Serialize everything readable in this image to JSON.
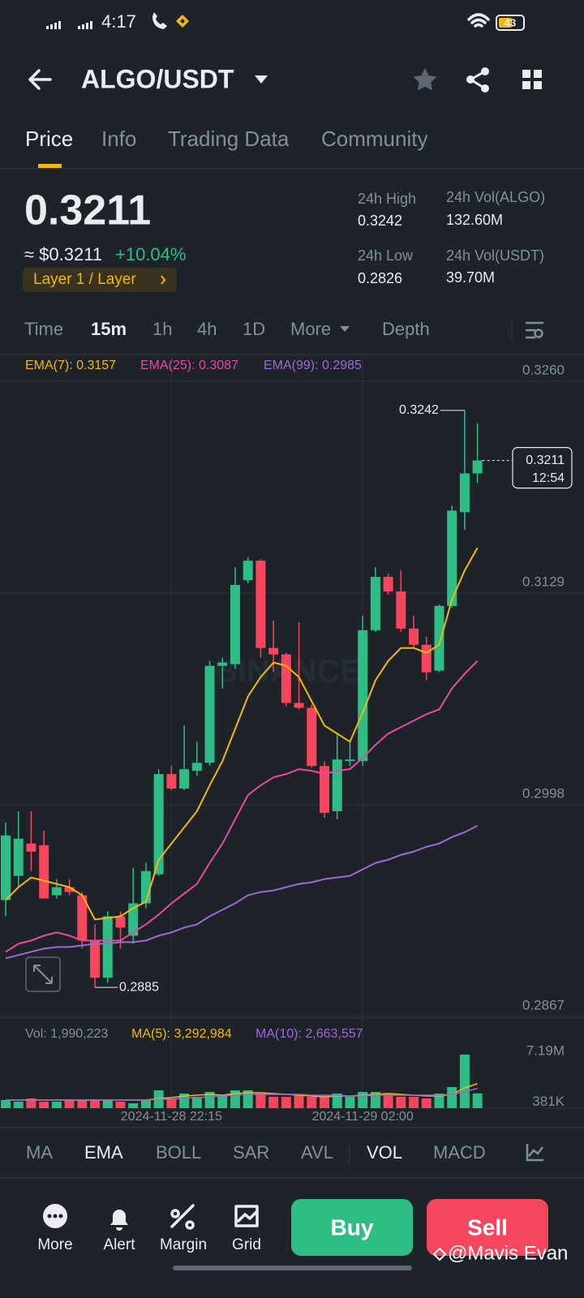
{
  "status_bar": {
    "time": "4:17",
    "battery": "43"
  },
  "header": {
    "pair": "ALGO/USDT"
  },
  "tabs": [
    "Price",
    "Info",
    "Trading Data",
    "Community"
  ],
  "price": {
    "last": "0.3211",
    "usd": "≈ $0.3211",
    "change": "+10.04%",
    "tag": "Layer 1 / Layer"
  },
  "stats": [
    {
      "label": "24h High",
      "value": "0.3242"
    },
    {
      "label": "24h Low",
      "value": "0.2826"
    },
    {
      "label": "24h Vol(ALGO)",
      "value": "132.60M"
    },
    {
      "label": "24h Vol(USDT)",
      "value": "39.70M"
    }
  ],
  "intervals": [
    "Time",
    "15m",
    "1h",
    "4h",
    "1D",
    "More",
    "Depth"
  ],
  "indicator_tabs": [
    "MA",
    "EMA",
    "BOLL",
    "SAR",
    "AVL",
    "VOL",
    "MACD"
  ],
  "actions": [
    "More",
    "Alert",
    "Margin",
    "Grid"
  ],
  "buy": "Buy",
  "sell": "Sell",
  "watermark": "@Mavis Evan",
  "logo": "BINANCE",
  "chart_data": [
    {
      "type": "candlestick",
      "up_color": "#2ebd85",
      "down_color": "#f6465d",
      "categories": [
        null,
        null,
        null,
        null,
        null,
        null,
        null,
        null,
        null,
        null,
        null,
        null,
        null,
        "2024-11-28 22:15",
        null,
        null,
        null,
        null,
        null,
        null,
        null,
        null,
        null,
        null,
        null,
        null,
        null,
        null,
        "2024-11-29 02:00",
        null,
        null,
        null,
        null,
        null,
        null,
        null,
        null,
        null
      ],
      "open": [
        0.2939,
        0.2954,
        0.2974,
        0.2973,
        0.2942,
        0.2947,
        0.2942,
        0.2914,
        0.2891,
        0.2929,
        0.2917,
        0.2937,
        0.2955,
        0.3017,
        0.3008,
        0.3019,
        0.3024,
        0.3084,
        0.3085,
        0.3137,
        0.3149,
        0.3095,
        0.3091,
        0.3061,
        0.3058,
        0.3022,
        0.2994,
        0.3025,
        0.3025,
        0.3106,
        0.3139,
        0.313,
        0.3107,
        0.3097,
        0.3081,
        0.3121,
        0.3179,
        0.3203
      ],
      "high": [
        0.2987,
        0.2994,
        0.2994,
        0.2982,
        0.2952,
        0.2952,
        0.2944,
        0.2924,
        0.2932,
        0.2932,
        0.2959,
        0.2962,
        0.302,
        0.3022,
        0.3047,
        0.3037,
        0.3087,
        0.3089,
        0.3145,
        0.3151,
        0.315,
        0.3112,
        0.3092,
        0.3111,
        0.306,
        0.3025,
        0.3042,
        0.3037,
        0.3115,
        0.3145,
        0.3141,
        0.3143,
        0.3115,
        0.3102,
        0.3122,
        0.3183,
        0.3242,
        0.3234
      ],
      "low": [
        0.2929,
        0.2947,
        0.2957,
        0.294,
        0.294,
        0.2942,
        0.2909,
        0.2885,
        0.2888,
        0.2909,
        0.2912,
        0.2934,
        0.2954,
        0.3007,
        0.3007,
        0.3016,
        0.3022,
        0.307,
        0.3082,
        0.3135,
        0.3089,
        0.308,
        0.3059,
        0.3057,
        0.3021,
        0.299,
        0.2989,
        0.3022,
        0.3022,
        0.3105,
        0.3128,
        0.3105,
        0.3095,
        0.3075,
        0.308,
        0.312,
        0.3168,
        0.3197
      ],
      "close": [
        0.2979,
        0.2977,
        0.2969,
        0.294,
        0.2947,
        0.2944,
        0.2914,
        0.2891,
        0.2929,
        0.2922,
        0.2937,
        0.2957,
        0.3017,
        0.3008,
        0.302,
        0.3024,
        0.3084,
        0.3086,
        0.3134,
        0.3149,
        0.3095,
        0.3091,
        0.3061,
        0.3058,
        0.3022,
        0.2993,
        0.3026,
        0.3026,
        0.3106,
        0.3139,
        0.313,
        0.3107,
        0.3097,
        0.308,
        0.3121,
        0.318,
        0.3203,
        0.3211
      ],
      "series": [
        {
          "name": "EMA(7): 0.3157",
          "color": "#f0b90b",
          "values": [
            0.2939,
            0.2947,
            0.2953,
            0.2951,
            0.2949,
            0.2947,
            0.2942,
            0.2927,
            0.2928,
            0.2929,
            0.2934,
            0.2938,
            0.2964,
            0.2974,
            0.2984,
            0.2994,
            0.301,
            0.3025,
            0.3045,
            0.3065,
            0.3077,
            0.3086,
            0.3084,
            0.3077,
            0.3062,
            0.3047,
            0.3042,
            0.3037,
            0.3055,
            0.3075,
            0.3087,
            0.3095,
            0.3095,
            0.3092,
            0.3097,
            0.3125,
            0.3143,
            0.3157
          ]
        },
        {
          "name": "EMA(25): 0.3087",
          "color": "#e84aa3",
          "values": [
            0.2907,
            0.2912,
            0.2914,
            0.2917,
            0.2919,
            0.2917,
            0.2914,
            0.2914,
            0.2914,
            0.2914,
            0.2919,
            0.2924,
            0.293,
            0.2937,
            0.2943,
            0.2949,
            0.2962,
            0.2974,
            0.2989,
            0.3004,
            0.301,
            0.3015,
            0.3017,
            0.302,
            0.3019,
            0.3017,
            0.3019,
            0.302,
            0.3027,
            0.3035,
            0.3042,
            0.3046,
            0.305,
            0.3054,
            0.3057,
            0.307,
            0.3079,
            0.3087
          ]
        },
        {
          "name": "EMA(99): 0.2985",
          "color": "#9c6ad4",
          "values": [
            0.2903,
            0.2905,
            0.2907,
            0.2909,
            0.291,
            0.291,
            0.2911,
            0.2912,
            0.2912,
            0.2913,
            0.2913,
            0.2914,
            0.2917,
            0.2919,
            0.2922,
            0.2924,
            0.2929,
            0.2933,
            0.2937,
            0.2942,
            0.2944,
            0.2945,
            0.2947,
            0.2949,
            0.295,
            0.2952,
            0.2953,
            0.2954,
            0.2958,
            0.2962,
            0.2964,
            0.2967,
            0.2969,
            0.2972,
            0.2974,
            0.2978,
            0.2981,
            0.2985
          ]
        }
      ],
      "ylim": [
        0.2867,
        0.326
      ],
      "yticks": [
        {
          "value": 0.326,
          "label": "0.3260"
        },
        0.3129,
        0.2998,
        0.2867
      ],
      "annotations": {
        "high": "0.3242",
        "low": "0.2885",
        "last": "0.3211",
        "countdown": "12:54"
      },
      "grid": true
    },
    {
      "type": "bar",
      "series": [
        {
          "name": "Vol: 1,990,223",
          "values": [
            1090000,
            872000,
            1308000,
            872000,
            872000,
            1090000,
            1090000,
            1090000,
            1090000,
            872000,
            654000,
            1090000,
            2398000,
            1308000,
            1962000,
            1526000,
            2180000,
            1744000,
            2398000,
            2398000,
            1962000,
            1526000,
            1526000,
            1744000,
            1526000,
            1526000,
            1962000,
            1526000,
            2180000,
            2180000,
            1962000,
            1526000,
            1526000,
            1308000,
            1962000,
            2834000,
            7190000,
            1990223
          ]
        },
        {
          "name": "MA(5): 3,292,984",
          "color": "#f0b90b",
          "values": [
            1090000,
            1090000,
            1090000,
            1090000,
            1090000,
            1090000,
            1090000,
            1090000,
            1090000,
            1090000,
            1090000,
            1090000,
            1308000,
            1417000,
            1635000,
            1744000,
            1853000,
            1744000,
            1962000,
            2071000,
            2071000,
            1962000,
            1853000,
            1744000,
            1635000,
            1526000,
            1635000,
            1635000,
            1744000,
            1853000,
            1962000,
            1853000,
            1744000,
            1635000,
            1635000,
            1853000,
            2725000,
            3292984
          ]
        },
        {
          "name": "MA(10): 2,663,557",
          "color": "#9c6ad4",
          "values": [
            1090000,
            1090000,
            1090000,
            1090000,
            1090000,
            1090000,
            1090000,
            1090000,
            1090000,
            1090000,
            1090000,
            1090000,
            1199000,
            1199000,
            1308000,
            1417000,
            1526000,
            1635000,
            1744000,
            1853000,
            1853000,
            1853000,
            1853000,
            1853000,
            1744000,
            1744000,
            1744000,
            1635000,
            1635000,
            1744000,
            1744000,
            1744000,
            1744000,
            1744000,
            1744000,
            1853000,
            2180000,
            2663557
          ]
        }
      ],
      "ylim": [
        0,
        7190000
      ],
      "yticks": [
        {
          "value": 7190000,
          "label": "7.19M"
        },
        {
          "value": 381000,
          "label": "381K"
        }
      ]
    }
  ]
}
